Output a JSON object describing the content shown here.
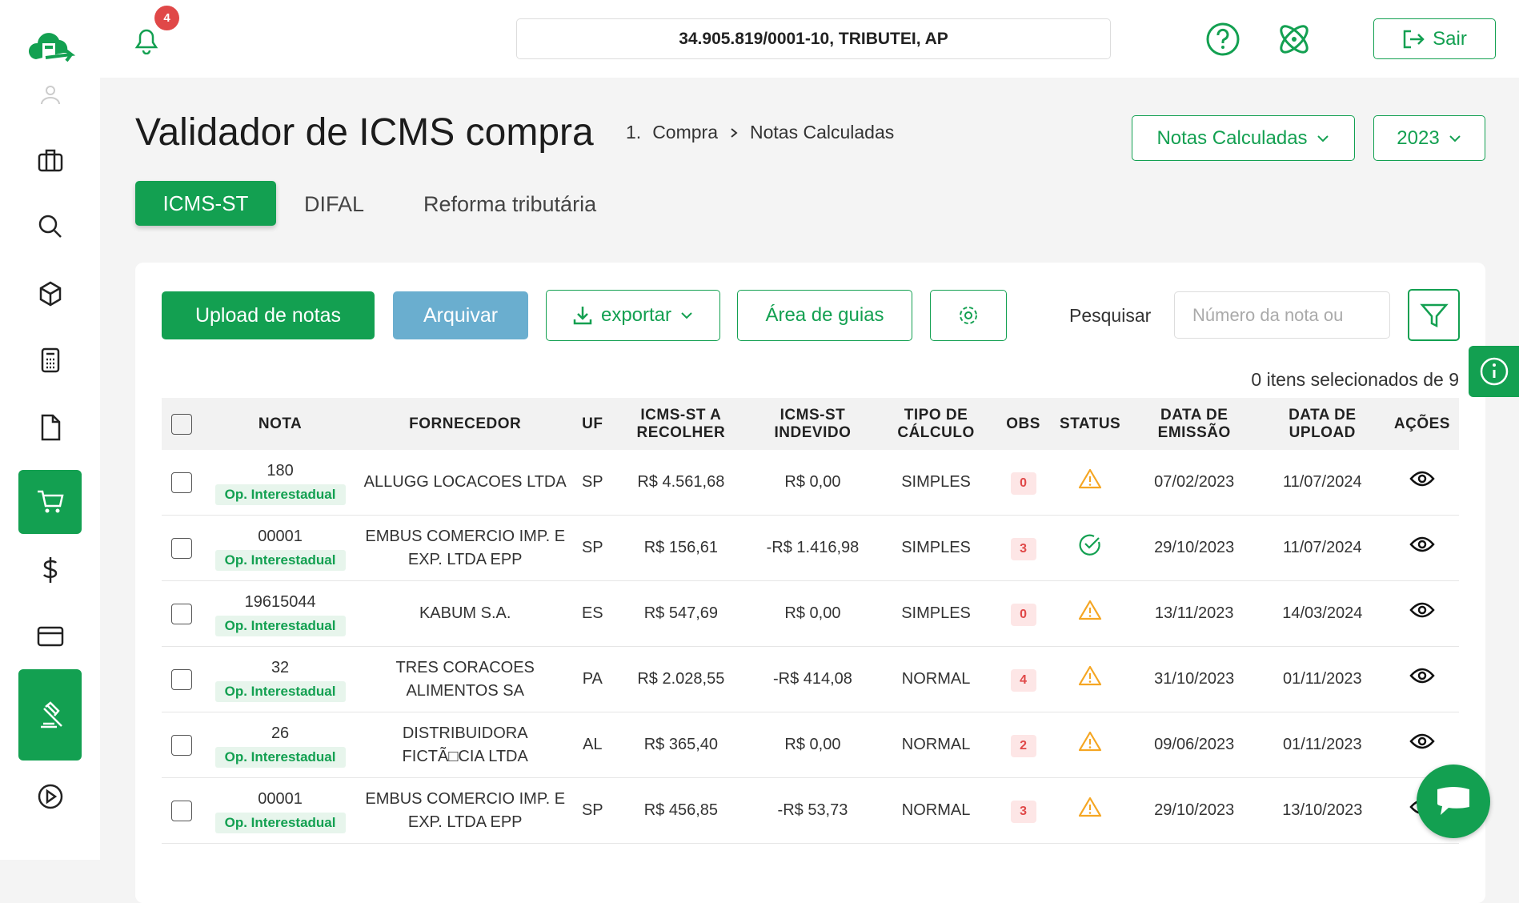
{
  "header": {
    "notifications": 4,
    "company": "34.905.819/0001-10, TRIBUTEI, AP",
    "logout": "Sair"
  },
  "page": {
    "title": "Validador de ICMS compra",
    "breadcrumb": [
      "1.",
      "Compra",
      "Notas Calculadas"
    ],
    "filters": [
      "Notas Calculadas",
      "2023"
    ]
  },
  "tabs": [
    "ICMS-ST",
    "DIFAL",
    "Reforma tributária"
  ],
  "toolbar": {
    "upload": "Upload de notas",
    "archive": "Arquivar",
    "export": "exportar",
    "guides": "Área de guias",
    "search_label": "Pesquisar",
    "search_placeholder": "Número da nota ou"
  },
  "selection": "0 itens selecionados de 9",
  "table": {
    "columns": [
      "NOTA",
      "FORNECEDOR",
      "UF",
      "ICMS-ST A RECOLHER",
      "ICMS-ST INDEVIDO",
      "TIPO DE CÁLCULO",
      "OBS",
      "STATUS",
      "DATA DE EMISSÃO",
      "DATA DE UPLOAD",
      "AÇÕES"
    ],
    "rows": [
      {
        "nota": "180",
        "tag": "Op. Interestadual",
        "fornecedor": "ALLUGG LOCACOES LTDA",
        "uf": "SP",
        "recolher": "R$ 4.561,68",
        "indevido": "R$ 0,00",
        "tipo": "SIMPLES",
        "obs": 0,
        "emissao": "07/02/2023",
        "upload": "11/07/2024"
      },
      {
        "nota": "00001",
        "tag": "Op. Interestadual",
        "fornecedor": "EMBUS COMERCIO IMP. E EXP. LTDA EPP",
        "uf": "SP",
        "recolher": "R$ 156,61",
        "indevido": "-R$ 1.416,98",
        "tipo": "SIMPLES",
        "obs": 3,
        "emissao": "29/10/2023",
        "upload": "11/07/2024"
      },
      {
        "nota": "19615044",
        "tag": "Op. Interestadual",
        "fornecedor": "KABUM S.A.",
        "uf": "ES",
        "recolher": "R$ 547,69",
        "indevido": "R$ 0,00",
        "tipo": "SIMPLES",
        "obs": 0,
        "emissao": "13/11/2023",
        "upload": "14/03/2024"
      },
      {
        "nota": "32",
        "tag": "Op. Interestadual",
        "fornecedor": "TRES CORACOES ALIMENTOS SA",
        "uf": "PA",
        "recolher": "R$ 2.028,55",
        "indevido": "-R$ 414,08",
        "tipo": "NORMAL",
        "obs": 4,
        "emissao": "31/10/2023",
        "upload": "01/11/2023"
      },
      {
        "nota": "26",
        "tag": "Op. Interestadual",
        "fornecedor": "DISTRIBUIDORA FICTÃ□CIA LTDA",
        "uf": "AL",
        "recolher": "R$ 365,40",
        "indevido": "R$ 0,00",
        "tipo": "NORMAL",
        "obs": 2,
        "emissao": "09/06/2023",
        "upload": "01/11/2023"
      },
      {
        "nota": "00001",
        "tag": "Op. Interestadual",
        "fornecedor": "EMBUS COMERCIO IMP. E EXP. LTDA EPP",
        "uf": "SP",
        "recolher": "R$ 456,85",
        "indevido": "-R$ 53,73",
        "tipo": "NORMAL",
        "obs": 3,
        "emissao": "29/10/2023",
        "upload": "13/10/2023"
      }
    ]
  }
}
